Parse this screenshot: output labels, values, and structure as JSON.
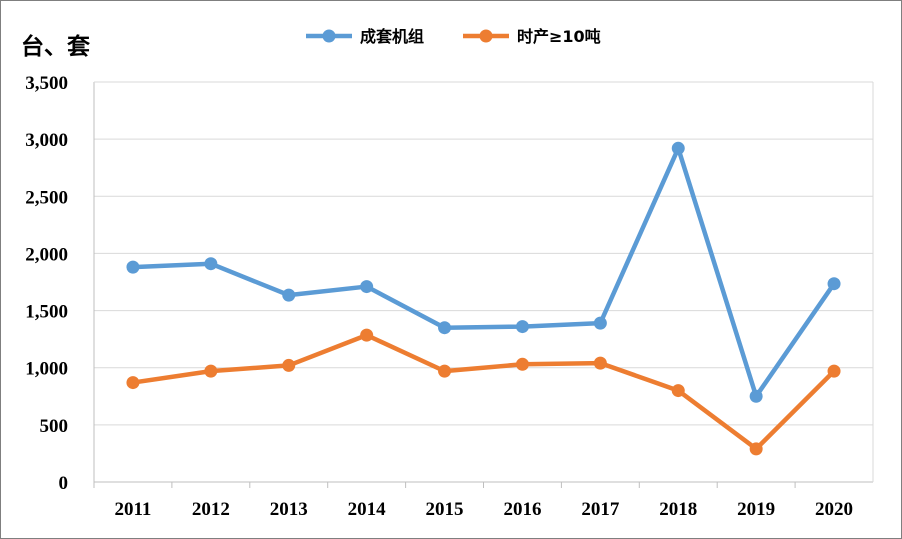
{
  "chart_data": {
    "type": "line",
    "title": "",
    "ylabel": "台、套",
    "xlabel": "",
    "categories": [
      "2011",
      "2012",
      "2013",
      "2014",
      "2015",
      "2016",
      "2017",
      "2018",
      "2019",
      "2020"
    ],
    "ylim": [
      0,
      3500
    ],
    "yticks": [
      0,
      500,
      1000,
      1500,
      2000,
      2500,
      3000,
      3500
    ],
    "ytick_labels": [
      "0",
      "500",
      "1,000",
      "1,500",
      "2,000",
      "2,500",
      "3,000",
      "3,500"
    ],
    "grid": true,
    "legend_position": "top-center",
    "series": [
      {
        "name": "成套机组",
        "color": "#5b9bd5",
        "values": [
          1880,
          1910,
          1635,
          1710,
          1350,
          1360,
          1390,
          2920,
          750,
          1735
        ]
      },
      {
        "name": "时产≥10吨",
        "color": "#ed7d31",
        "values": [
          870,
          970,
          1020,
          1285,
          970,
          1030,
          1040,
          800,
          290,
          970
        ]
      }
    ]
  }
}
